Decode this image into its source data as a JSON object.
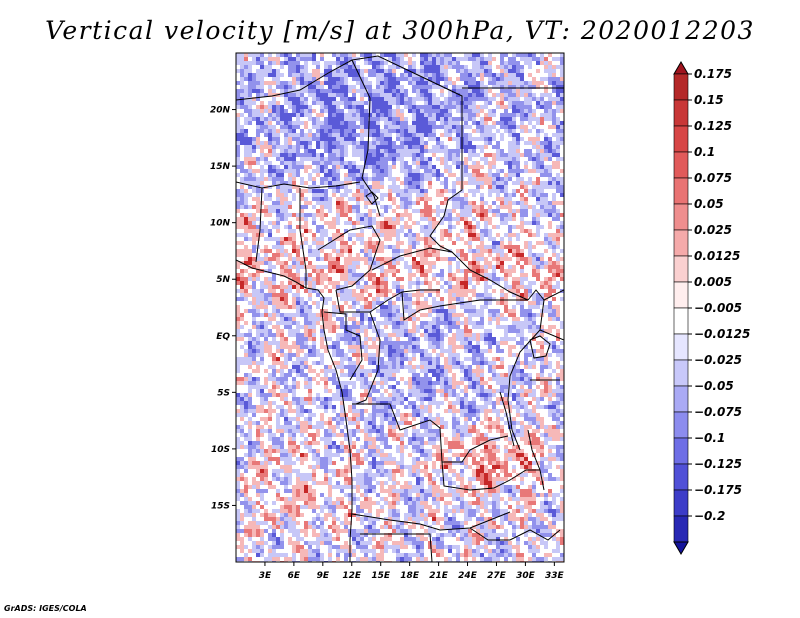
{
  "title": "Vertical velocity [m/s] at 300hPa, VT: 2020012203",
  "credit": "GrADS: IGES/COLA",
  "chart_data": {
    "type": "heatmap",
    "title": "Vertical velocity [m/s] at 300hPa, VT: 2020012203",
    "variable": "Vertical velocity",
    "units": "m/s",
    "level": "300hPa",
    "valid_time": "2020012203",
    "lon_range": [
      0,
      34
    ],
    "lat_range": [
      -20,
      25
    ],
    "x_ticks": [
      {
        "value": 3,
        "label": "3E"
      },
      {
        "value": 6,
        "label": "6E"
      },
      {
        "value": 9,
        "label": "9E"
      },
      {
        "value": 12,
        "label": "12E"
      },
      {
        "value": 15,
        "label": "15E"
      },
      {
        "value": 18,
        "label": "18E"
      },
      {
        "value": 21,
        "label": "21E"
      },
      {
        "value": 24,
        "label": "24E"
      },
      {
        "value": 27,
        "label": "27E"
      },
      {
        "value": 30,
        "label": "30E"
      },
      {
        "value": 33,
        "label": "33E"
      }
    ],
    "y_ticks": [
      {
        "value": 20,
        "label": "20N"
      },
      {
        "value": 15,
        "label": "15N"
      },
      {
        "value": 10,
        "label": "10N"
      },
      {
        "value": 5,
        "label": "5N"
      },
      {
        "value": 0,
        "label": "EQ"
      },
      {
        "value": -5,
        "label": "5S"
      },
      {
        "value": -10,
        "label": "10S"
      },
      {
        "value": -15,
        "label": "15S"
      }
    ],
    "colorbar": {
      "labels": [
        "0.175",
        "0.15",
        "0.125",
        "0.1",
        "0.075",
        "0.05",
        "0.025",
        "0.0125",
        "0.005",
        "−0.005",
        "−0.0125",
        "−0.025",
        "−0.05",
        "−0.075",
        "−0.1",
        "−0.125",
        "−0.175",
        "−0.2"
      ],
      "colors": [
        "#a0141e",
        "#b42828",
        "#c83737",
        "#d74646",
        "#e15a5a",
        "#e97373",
        "#ef8e8e",
        "#f5aaaa",
        "#fad0d0",
        "#ffeeee",
        "#ffffff",
        "#e6e6ff",
        "#c8c8fa",
        "#aaaaf5",
        "#8c8cee",
        "#6e6ee6",
        "#5050d7",
        "#3c3cc8",
        "#2828b4",
        "#14149b"
      ]
    },
    "field_colors": {
      "strong_up": "#c62828",
      "up": "#e87878",
      "weak_up": "#f6b8b8",
      "neutral": "#ffffff",
      "weak_down": "#c7c7f7",
      "down": "#9292ec",
      "strong_down": "#5a5ad8"
    }
  }
}
